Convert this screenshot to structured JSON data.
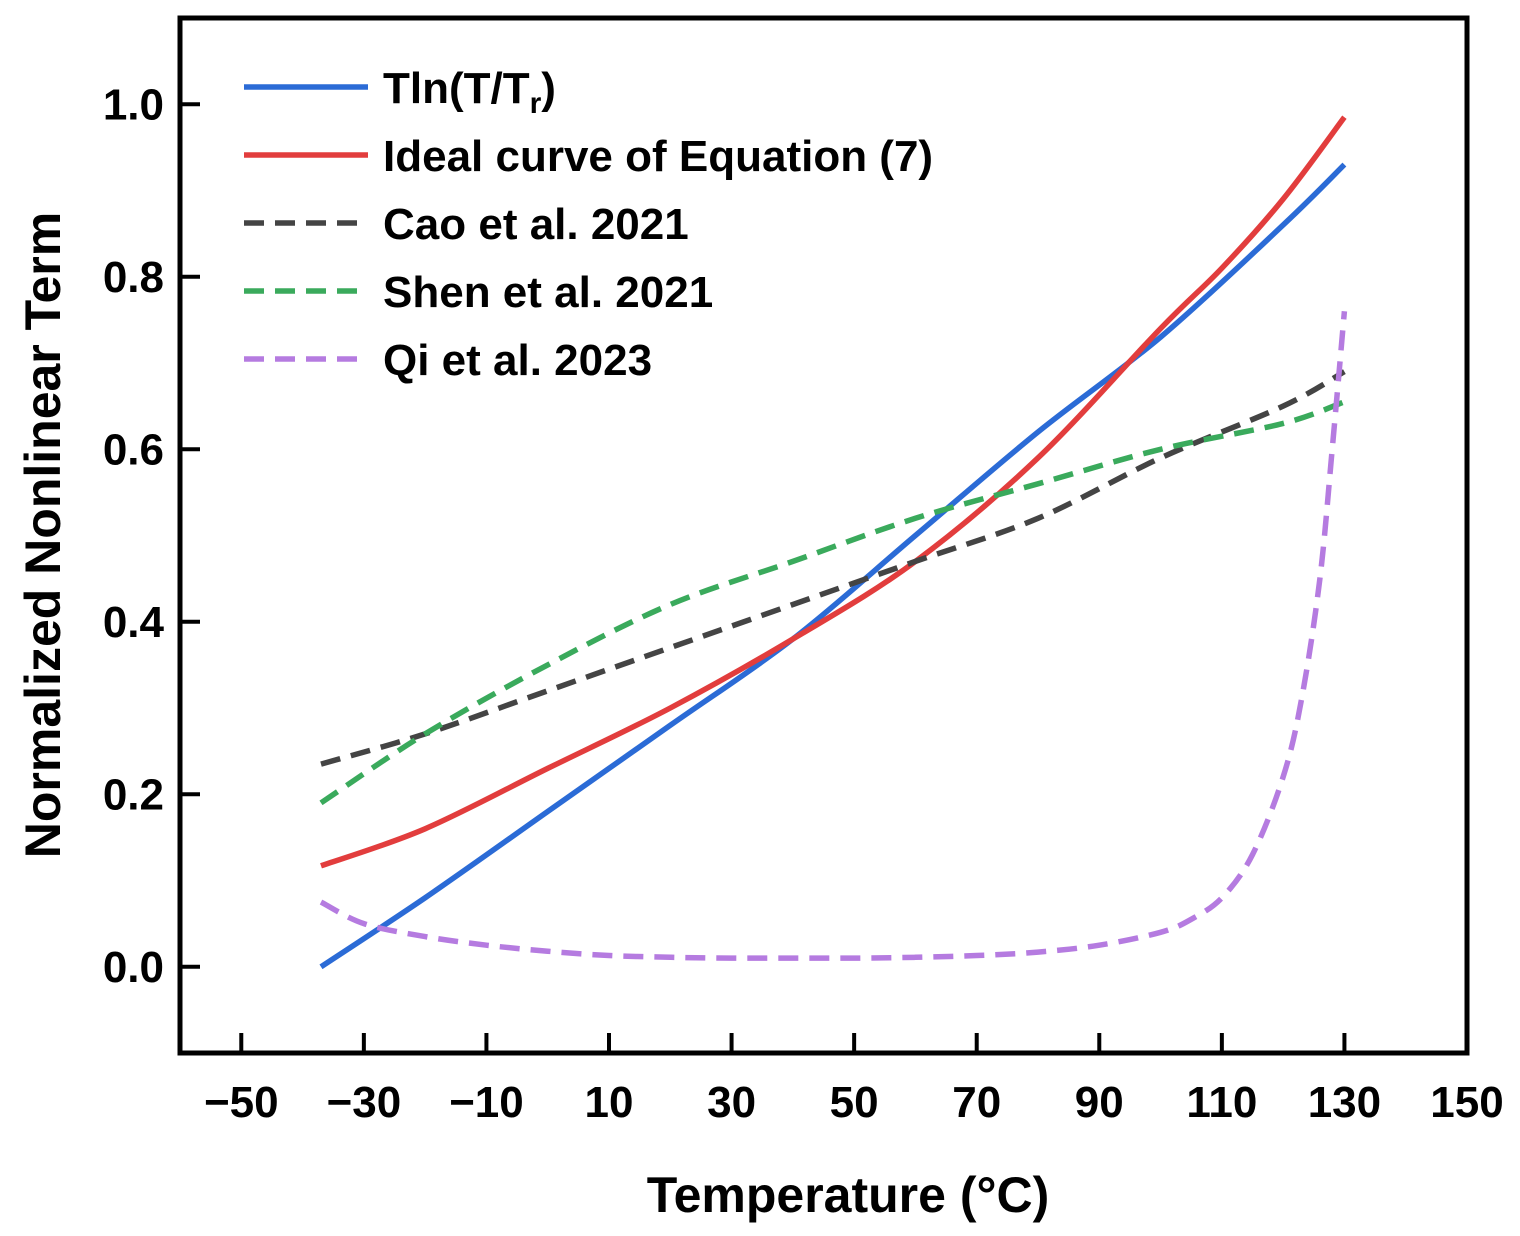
{
  "chart_data": {
    "type": "line",
    "xlabel": "Temperature (°C)",
    "ylabel": "Normalized Nonlinear Term",
    "xlim": [
      -60,
      150
    ],
    "ylim": [
      -0.1,
      1.1
    ],
    "xticks": [
      "−50",
      "−30",
      "−10",
      "10",
      "30",
      "50",
      "70",
      "90",
      "110",
      "130",
      "150"
    ],
    "xtick_values": [
      -50,
      -30,
      -10,
      10,
      30,
      50,
      70,
      90,
      110,
      130,
      150
    ],
    "yticks": [
      "0.0",
      "0.2",
      "0.4",
      "0.6",
      "0.8",
      "1.0"
    ],
    "ytick_values": [
      0.0,
      0.2,
      0.4,
      0.6,
      0.8,
      1.0
    ],
    "legend_position": "top-left",
    "series": [
      {
        "name": "Tln(T/Tr)",
        "label_main": "Tln(T/T",
        "label_sub": "r",
        "label_end": ")",
        "color": "#2b6bd6",
        "style": "solid",
        "x": [
          -37,
          -20,
          0,
          20,
          40,
          60,
          80,
          100,
          120,
          130
        ],
        "y": [
          0.0,
          0.08,
          0.18,
          0.28,
          0.38,
          0.5,
          0.62,
          0.73,
          0.86,
          0.93
        ]
      },
      {
        "name": "Ideal curve of Equation (7)",
        "color": "#e23d3d",
        "style": "solid",
        "x": [
          -37,
          -20,
          0,
          20,
          40,
          60,
          80,
          100,
          110,
          120,
          130
        ],
        "y": [
          0.117,
          0.16,
          0.23,
          0.3,
          0.38,
          0.47,
          0.59,
          0.74,
          0.81,
          0.89,
          0.985
        ]
      },
      {
        "name": "Cao et al. 2021",
        "color": "#444444",
        "style": "dashed",
        "x": [
          -37,
          -20,
          0,
          20,
          40,
          60,
          80,
          100,
          120,
          130
        ],
        "y": [
          0.235,
          0.27,
          0.32,
          0.37,
          0.42,
          0.47,
          0.52,
          0.59,
          0.65,
          0.69
        ]
      },
      {
        "name": "Shen et al. 2021",
        "color": "#3aaa5c",
        "style": "dashed",
        "x": [
          -37,
          -20,
          0,
          20,
          40,
          60,
          80,
          100,
          120,
          130
        ],
        "y": [
          0.19,
          0.27,
          0.35,
          0.42,
          0.47,
          0.52,
          0.56,
          0.6,
          0.63,
          0.655
        ]
      },
      {
        "name": "Qi et al. 2023",
        "color": "#b57be0",
        "style": "dashed",
        "x": [
          -37,
          -30,
          -20,
          -10,
          0,
          10,
          20,
          30,
          40,
          50,
          60,
          70,
          80,
          90,
          100,
          105,
          110,
          115,
          120,
          123,
          126,
          128,
          130
        ],
        "y": [
          0.075,
          0.05,
          0.035,
          0.025,
          0.018,
          0.013,
          0.011,
          0.01,
          0.01,
          0.01,
          0.011,
          0.013,
          0.017,
          0.025,
          0.04,
          0.055,
          0.08,
          0.13,
          0.22,
          0.31,
          0.45,
          0.6,
          0.76
        ]
      }
    ]
  }
}
